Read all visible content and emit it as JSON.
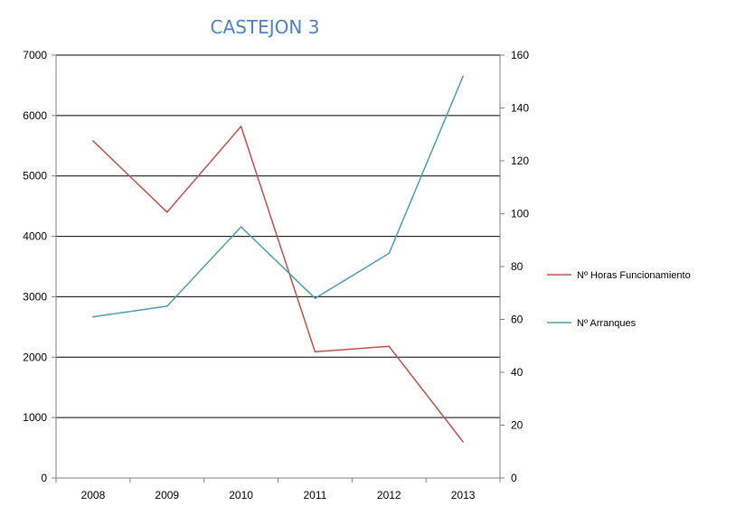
{
  "chart_data": {
    "type": "line",
    "title": "CASTEJON 3",
    "categories": [
      "2008",
      "2009",
      "2010",
      "2011",
      "2012",
      "2013"
    ],
    "y_left": {
      "ticks": [
        0,
        1000,
        2000,
        3000,
        4000,
        5000,
        6000,
        7000
      ],
      "range": [
        0,
        7000
      ]
    },
    "y_right": {
      "ticks": [
        0,
        20,
        40,
        60,
        80,
        100,
        120,
        140,
        160
      ],
      "range": [
        0,
        160
      ]
    },
    "grid": true,
    "legend_position": "right",
    "series": [
      {
        "name": "Nº Horas Funcionamiento",
        "axis": "left",
        "color": "#c0504d",
        "values": [
          5580,
          4400,
          5820,
          2090,
          2180,
          600
        ]
      },
      {
        "name": "Nº Arranques",
        "axis": "right",
        "color": "#4f9dac",
        "values": [
          61,
          65,
          95,
          68,
          85,
          152
        ]
      }
    ]
  }
}
